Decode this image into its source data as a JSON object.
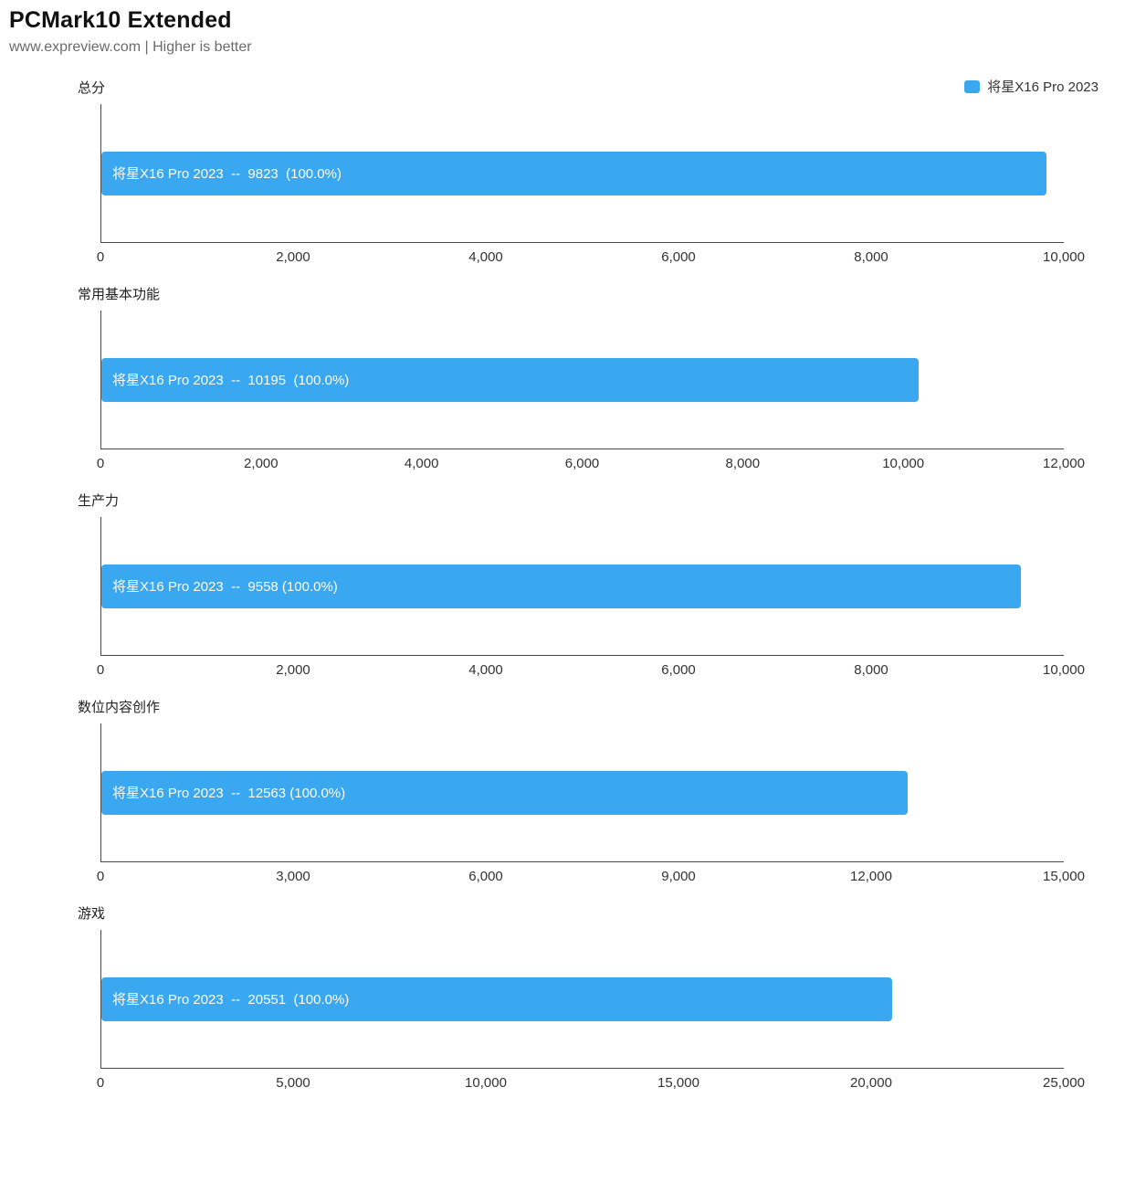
{
  "header": {
    "title": "PCMark10 Extended",
    "subtitle": "www.expreview.com | Higher is better"
  },
  "legend": {
    "label": "将星X16 Pro 2023",
    "color": "#3aa7f1"
  },
  "colors": {
    "bar": "#3aa7f1",
    "bar_text": "#ffffff",
    "axis": "#4a4a4a"
  },
  "chart_data": [
    {
      "type": "bar",
      "title": "总分",
      "series_name": "将星X16 Pro 2023",
      "value": 9823,
      "percent": "100.0%",
      "bar_label": "将星X16 Pro 2023  --  9823  (100.0%)",
      "xlim": [
        0,
        10000
      ],
      "xticks": [
        0,
        2000,
        4000,
        6000,
        8000,
        10000
      ],
      "xtick_labels": [
        "0",
        "2,000",
        "4,000",
        "6,000",
        "8,000",
        "10,000"
      ]
    },
    {
      "type": "bar",
      "title": "常用基本功能",
      "series_name": "将星X16 Pro 2023",
      "value": 10195,
      "percent": "100.0%",
      "bar_label": "将星X16 Pro 2023  --  10195  (100.0%)",
      "xlim": [
        0,
        12000
      ],
      "xticks": [
        0,
        2000,
        4000,
        6000,
        8000,
        10000,
        12000
      ],
      "xtick_labels": [
        "0",
        "2,000",
        "4,000",
        "6,000",
        "8,000",
        "10,000",
        "12,000"
      ]
    },
    {
      "type": "bar",
      "title": "生产力",
      "series_name": "将星X16 Pro 2023",
      "value": 9558,
      "percent": "100.0%",
      "bar_label": "将星X16 Pro 2023  --  9558 (100.0%)",
      "xlim": [
        0,
        10000
      ],
      "xticks": [
        0,
        2000,
        4000,
        6000,
        8000,
        10000
      ],
      "xtick_labels": [
        "0",
        "2,000",
        "4,000",
        "6,000",
        "8,000",
        "10,000"
      ]
    },
    {
      "type": "bar",
      "title": "数位内容创作",
      "series_name": "将星X16 Pro 2023",
      "value": 12563,
      "percent": "100.0%",
      "bar_label": "将星X16 Pro 2023  --  12563 (100.0%)",
      "xlim": [
        0,
        15000
      ],
      "xticks": [
        0,
        3000,
        6000,
        9000,
        12000,
        15000
      ],
      "xtick_labels": [
        "0",
        "3,000",
        "6,000",
        "9,000",
        "12,000",
        "15,000"
      ]
    },
    {
      "type": "bar",
      "title": "游戏",
      "series_name": "将星X16 Pro 2023",
      "value": 20551,
      "percent": "100.0%",
      "bar_label": "将星X16 Pro 2023  --  20551  (100.0%)",
      "xlim": [
        0,
        25000
      ],
      "xticks": [
        0,
        5000,
        10000,
        15000,
        20000,
        25000
      ],
      "xtick_labels": [
        "0",
        "5,000",
        "10,000",
        "15,000",
        "20,000",
        "25,000"
      ]
    }
  ]
}
